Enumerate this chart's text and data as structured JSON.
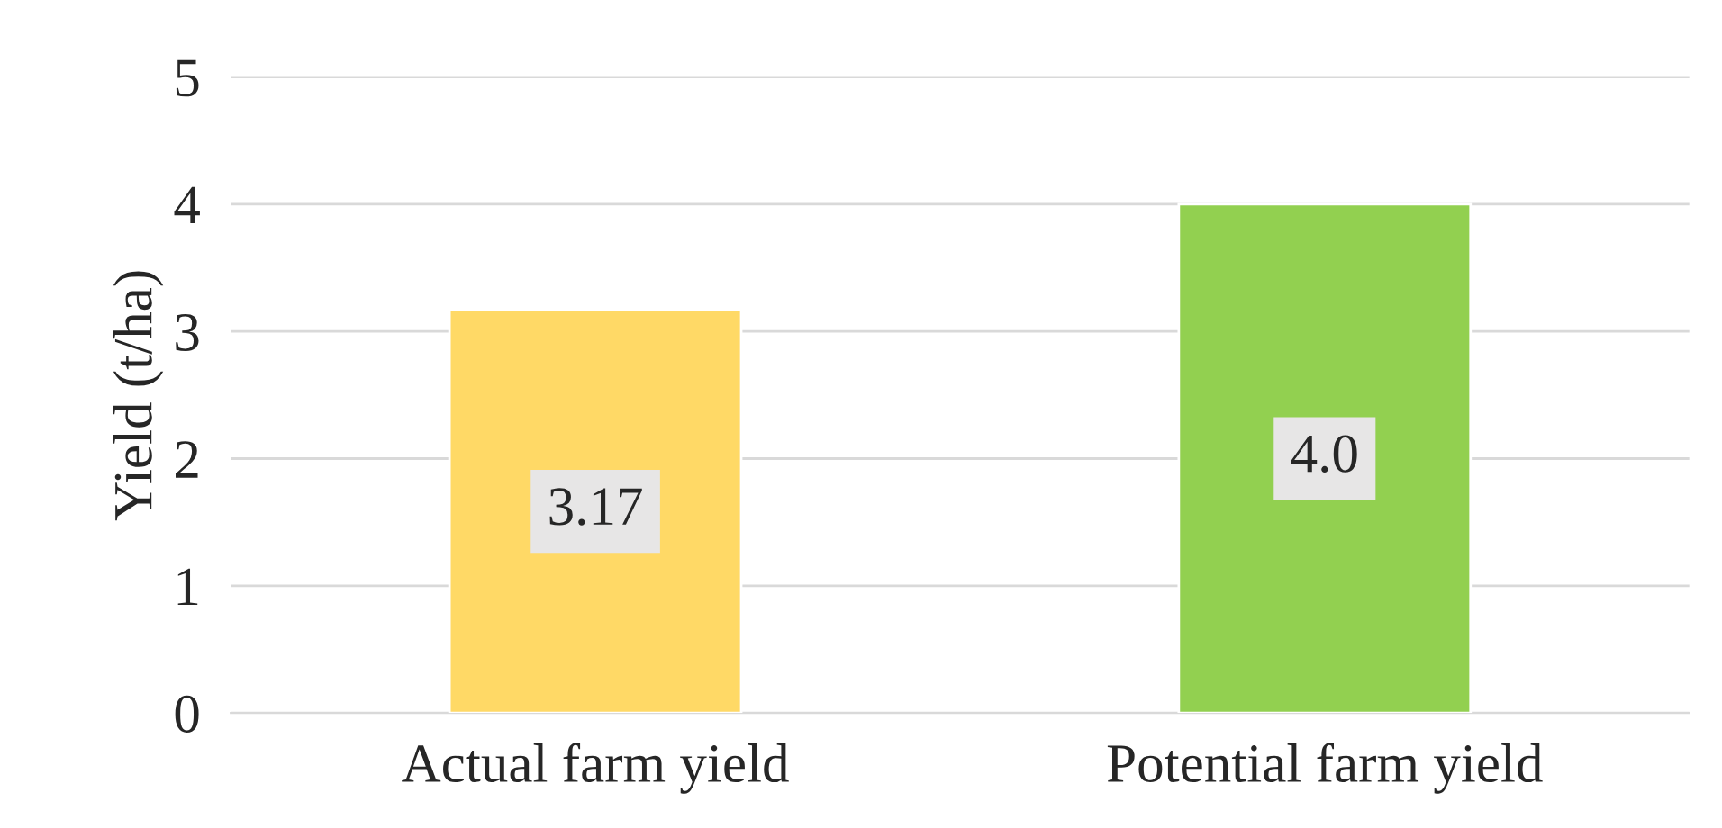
{
  "chart_data": {
    "type": "bar",
    "ylabel": "Yield (t/ha)",
    "categories": [
      "Actual farm yield",
      "Potential farm yield"
    ],
    "values": [
      3.17,
      4.0
    ],
    "colors": [
      "#ffd966",
      "#92d050"
    ],
    "value_labels": [
      "3.17",
      "4.0"
    ],
    "ylim": [
      0,
      5
    ],
    "yticks": [
      0,
      1,
      2,
      3,
      4,
      5
    ],
    "grid": "y"
  }
}
